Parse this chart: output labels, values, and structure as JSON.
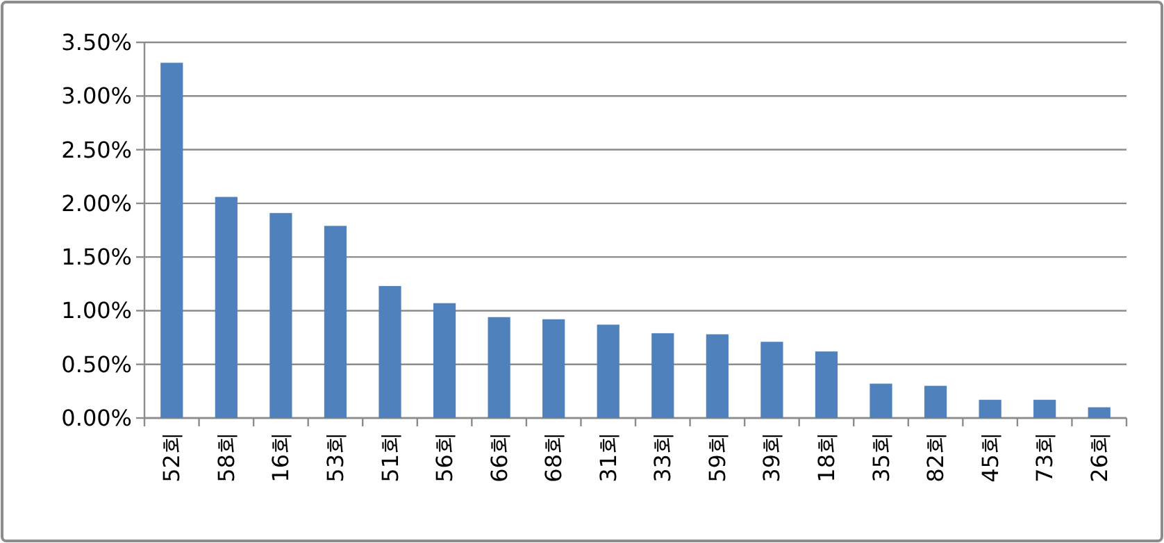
{
  "chart_data": {
    "type": "bar",
    "categories": [
      "52회",
      "58회",
      "16회",
      "53회",
      "51회",
      "56회",
      "66회",
      "68회",
      "31회",
      "33회",
      "59회",
      "39회",
      "18회",
      "35회",
      "82회",
      "45회",
      "73회",
      "26회"
    ],
    "values": [
      3.31,
      2.06,
      1.91,
      1.79,
      1.23,
      1.07,
      0.94,
      0.92,
      0.87,
      0.79,
      0.78,
      0.71,
      0.62,
      0.32,
      0.3,
      0.17,
      0.17,
      0.1
    ],
    "color": "#4f81bd",
    "ylim": [
      0,
      3.5
    ],
    "yticks": [
      {
        "value": 0,
        "label": "0.00%"
      },
      {
        "value": 0.5,
        "label": "0.50%"
      },
      {
        "value": 1,
        "label": "1.00%"
      },
      {
        "value": 1.5,
        "label": "1.50%"
      },
      {
        "value": 2,
        "label": "2.00%"
      },
      {
        "value": 2.5,
        "label": "2.50%"
      },
      {
        "value": 3,
        "label": "3.00%"
      },
      {
        "value": 3.5,
        "label": "3.50%"
      }
    ],
    "grid": "y"
  }
}
